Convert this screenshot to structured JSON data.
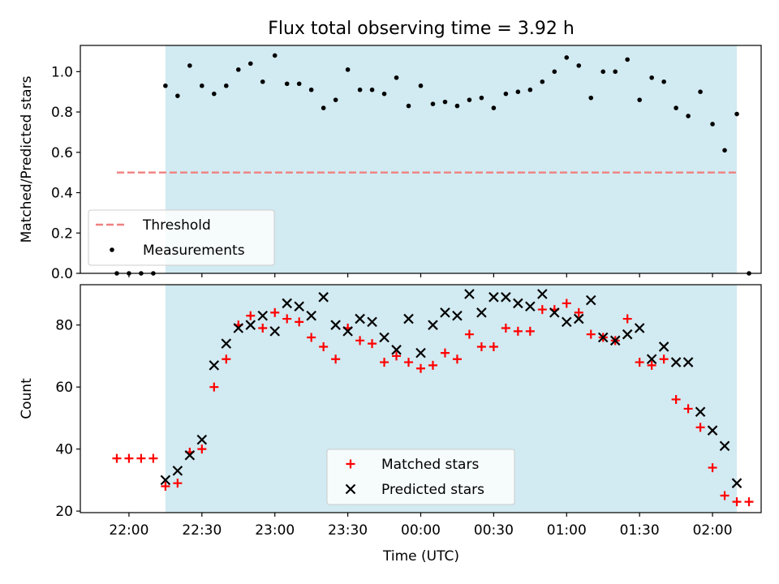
{
  "chart_data": {
    "title": "Flux total observing time = 3.92 h",
    "xlabel": "Time (UTC)",
    "x_tick_labels": [
      "22:00",
      "22:30",
      "23:00",
      "23:30",
      "00:00",
      "00:30",
      "01:00",
      "01:30",
      "02:00"
    ],
    "x_range": [
      "2023-01-01 21:40",
      "2023-01-02 02:20"
    ],
    "observing_window": [
      "2023-01-01 22:15",
      "2023-01-02 02:10"
    ],
    "highlight_color": "#add8e6",
    "panels": [
      {
        "type": "scatter",
        "ylabel": "Matched/Predicted stars",
        "ylim": [
          0,
          1.13
        ],
        "y_ticks": [
          "0.0",
          "0.2",
          "0.4",
          "0.6",
          "0.8",
          "1.0"
        ],
        "legend_position": "lower-left",
        "threshold": {
          "name": "Threshold",
          "value": 0.5,
          "range": [
            "2023-01-01 21:55",
            "2023-01-02 02:10"
          ],
          "color": "#f08080"
        },
        "series": [
          {
            "name": "Measurements",
            "color": "#000000",
            "points": [
              [
                "2023-01-01 21:55",
                0.0
              ],
              [
                "2023-01-01 22:00",
                0.0
              ],
              [
                "2023-01-01 22:05",
                0.0
              ],
              [
                "2023-01-01 22:10",
                0.0
              ],
              [
                "2023-01-01 22:15",
                0.93
              ],
              [
                "2023-01-01 22:20",
                0.88
              ],
              [
                "2023-01-01 22:25",
                1.03
              ],
              [
                "2023-01-01 22:30",
                0.93
              ],
              [
                "2023-01-01 22:35",
                0.89
              ],
              [
                "2023-01-01 22:40",
                0.93
              ],
              [
                "2023-01-01 22:45",
                1.01
              ],
              [
                "2023-01-01 22:50",
                1.04
              ],
              [
                "2023-01-01 22:55",
                0.95
              ],
              [
                "2023-01-01 23:00",
                1.08
              ],
              [
                "2023-01-01 23:05",
                0.94
              ],
              [
                "2023-01-01 23:10",
                0.94
              ],
              [
                "2023-01-01 23:15",
                0.91
              ],
              [
                "2023-01-01 23:20",
                0.82
              ],
              [
                "2023-01-01 23:25",
                0.86
              ],
              [
                "2023-01-01 23:30",
                1.01
              ],
              [
                "2023-01-01 23:35",
                0.91
              ],
              [
                "2023-01-01 23:40",
                0.91
              ],
              [
                "2023-01-01 23:45",
                0.89
              ],
              [
                "2023-01-01 23:50",
                0.97
              ],
              [
                "2023-01-01 23:55",
                0.83
              ],
              [
                "2023-01-02 00:00",
                0.93
              ],
              [
                "2023-01-02 00:05",
                0.84
              ],
              [
                "2023-01-02 00:10",
                0.85
              ],
              [
                "2023-01-02 00:15",
                0.83
              ],
              [
                "2023-01-02 00:20",
                0.86
              ],
              [
                "2023-01-02 00:25",
                0.87
              ],
              [
                "2023-01-02 00:30",
                0.82
              ],
              [
                "2023-01-02 00:35",
                0.89
              ],
              [
                "2023-01-02 00:40",
                0.9
              ],
              [
                "2023-01-02 00:45",
                0.91
              ],
              [
                "2023-01-02 00:50",
                0.95
              ],
              [
                "2023-01-02 00:55",
                1.0
              ],
              [
                "2023-01-02 01:00",
                1.07
              ],
              [
                "2023-01-02 01:05",
                1.03
              ],
              [
                "2023-01-02 01:10",
                0.87
              ],
              [
                "2023-01-02 01:15",
                1.0
              ],
              [
                "2023-01-02 01:20",
                1.0
              ],
              [
                "2023-01-02 01:25",
                1.06
              ],
              [
                "2023-01-02 01:30",
                0.86
              ],
              [
                "2023-01-02 01:35",
                0.97
              ],
              [
                "2023-01-02 01:40",
                0.95
              ],
              [
                "2023-01-02 01:45",
                0.82
              ],
              [
                "2023-01-02 01:50",
                0.78
              ],
              [
                "2023-01-02 01:55",
                0.9
              ],
              [
                "2023-01-02 02:00",
                0.74
              ],
              [
                "2023-01-02 02:05",
                0.61
              ],
              [
                "2023-01-02 02:10",
                0.79
              ],
              [
                "2023-01-02 02:15",
                0.0
              ]
            ]
          }
        ]
      },
      {
        "type": "scatter",
        "ylabel": "Count",
        "ylim": [
          19.5,
          93
        ],
        "y_ticks": [
          "20",
          "40",
          "60",
          "80"
        ],
        "legend_position": "lower-center",
        "series": [
          {
            "name": "Matched stars",
            "marker": "plus",
            "color": "#ff0000",
            "points": [
              [
                "2023-01-01 21:55",
                37
              ],
              [
                "2023-01-01 22:00",
                37
              ],
              [
                "2023-01-01 22:05",
                37
              ],
              [
                "2023-01-01 22:10",
                37
              ],
              [
                "2023-01-01 22:15",
                28
              ],
              [
                "2023-01-01 22:20",
                29
              ],
              [
                "2023-01-01 22:25",
                39
              ],
              [
                "2023-01-01 22:30",
                40
              ],
              [
                "2023-01-01 22:35",
                60
              ],
              [
                "2023-01-01 22:40",
                69
              ],
              [
                "2023-01-01 22:45",
                80
              ],
              [
                "2023-01-01 22:50",
                83
              ],
              [
                "2023-01-01 22:55",
                79
              ],
              [
                "2023-01-01 23:00",
                84
              ],
              [
                "2023-01-01 23:05",
                82
              ],
              [
                "2023-01-01 23:10",
                81
              ],
              [
                "2023-01-01 23:15",
                76
              ],
              [
                "2023-01-01 23:20",
                73
              ],
              [
                "2023-01-01 23:25",
                69
              ],
              [
                "2023-01-01 23:30",
                79
              ],
              [
                "2023-01-01 23:35",
                75
              ],
              [
                "2023-01-01 23:40",
                74
              ],
              [
                "2023-01-01 23:45",
                68
              ],
              [
                "2023-01-01 23:50",
                70
              ],
              [
                "2023-01-01 23:55",
                68
              ],
              [
                "2023-01-02 00:00",
                66
              ],
              [
                "2023-01-02 00:05",
                67
              ],
              [
                "2023-01-02 00:10",
                71
              ],
              [
                "2023-01-02 00:15",
                69
              ],
              [
                "2023-01-02 00:20",
                77
              ],
              [
                "2023-01-02 00:25",
                73
              ],
              [
                "2023-01-02 00:30",
                73
              ],
              [
                "2023-01-02 00:35",
                79
              ],
              [
                "2023-01-02 00:40",
                78
              ],
              [
                "2023-01-02 00:45",
                78
              ],
              [
                "2023-01-02 00:50",
                85
              ],
              [
                "2023-01-02 00:55",
                85
              ],
              [
                "2023-01-02 01:00",
                87
              ],
              [
                "2023-01-02 01:05",
                84
              ],
              [
                "2023-01-02 01:10",
                77
              ],
              [
                "2023-01-02 01:15",
                76
              ],
              [
                "2023-01-02 01:20",
                75
              ],
              [
                "2023-01-02 01:25",
                82
              ],
              [
                "2023-01-02 01:30",
                68
              ],
              [
                "2023-01-02 01:35",
                67
              ],
              [
                "2023-01-02 01:40",
                69
              ],
              [
                "2023-01-02 01:45",
                56
              ],
              [
                "2023-01-02 01:50",
                53
              ],
              [
                "2023-01-02 01:55",
                47
              ],
              [
                "2023-01-02 02:00",
                34
              ],
              [
                "2023-01-02 02:05",
                25
              ],
              [
                "2023-01-02 02:10",
                23
              ],
              [
                "2023-01-02 02:15",
                23
              ]
            ]
          },
          {
            "name": "Predicted stars",
            "marker": "x",
            "color": "#000000",
            "points": [
              [
                "2023-01-01 22:15",
                30
              ],
              [
                "2023-01-01 22:20",
                33
              ],
              [
                "2023-01-01 22:25",
                38
              ],
              [
                "2023-01-01 22:30",
                43
              ],
              [
                "2023-01-01 22:35",
                67
              ],
              [
                "2023-01-01 22:40",
                74
              ],
              [
                "2023-01-01 22:45",
                79
              ],
              [
                "2023-01-01 22:50",
                80
              ],
              [
                "2023-01-01 22:55",
                83
              ],
              [
                "2023-01-01 23:00",
                78
              ],
              [
                "2023-01-01 23:05",
                87
              ],
              [
                "2023-01-01 23:10",
                86
              ],
              [
                "2023-01-01 23:15",
                83
              ],
              [
                "2023-01-01 23:20",
                89
              ],
              [
                "2023-01-01 23:25",
                80
              ],
              [
                "2023-01-01 23:30",
                78
              ],
              [
                "2023-01-01 23:35",
                82
              ],
              [
                "2023-01-01 23:40",
                81
              ],
              [
                "2023-01-01 23:45",
                76
              ],
              [
                "2023-01-01 23:50",
                72
              ],
              [
                "2023-01-01 23:55",
                82
              ],
              [
                "2023-01-02 00:00",
                71
              ],
              [
                "2023-01-02 00:05",
                80
              ],
              [
                "2023-01-02 00:10",
                84
              ],
              [
                "2023-01-02 00:15",
                83
              ],
              [
                "2023-01-02 00:20",
                90
              ],
              [
                "2023-01-02 00:25",
                84
              ],
              [
                "2023-01-02 00:30",
                89
              ],
              [
                "2023-01-02 00:35",
                89
              ],
              [
                "2023-01-02 00:40",
                87
              ],
              [
                "2023-01-02 00:45",
                86
              ],
              [
                "2023-01-02 00:50",
                90
              ],
              [
                "2023-01-02 00:55",
                84
              ],
              [
                "2023-01-02 01:00",
                81
              ],
              [
                "2023-01-02 01:05",
                82
              ],
              [
                "2023-01-02 01:10",
                88
              ],
              [
                "2023-01-02 01:15",
                76
              ],
              [
                "2023-01-02 01:20",
                75
              ],
              [
                "2023-01-02 01:25",
                77
              ],
              [
                "2023-01-02 01:30",
                79
              ],
              [
                "2023-01-02 01:35",
                69
              ],
              [
                "2023-01-02 01:40",
                73
              ],
              [
                "2023-01-02 01:45",
                68
              ],
              [
                "2023-01-02 01:50",
                68
              ],
              [
                "2023-01-02 01:55",
                52
              ],
              [
                "2023-01-02 02:00",
                46
              ],
              [
                "2023-01-02 02:05",
                41
              ],
              [
                "2023-01-02 02:10",
                29
              ]
            ]
          }
        ]
      }
    ]
  }
}
